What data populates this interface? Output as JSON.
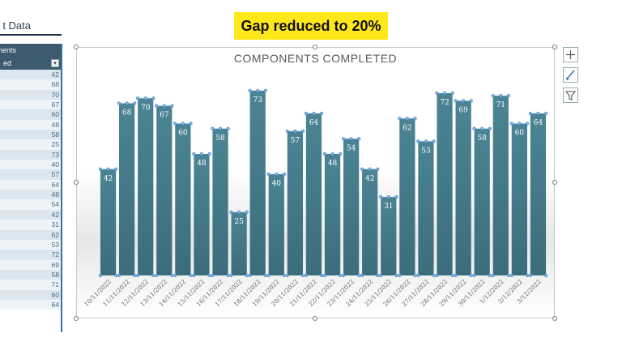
{
  "badge": {
    "text": "Gap reduced to 20%"
  },
  "sheet": {
    "title_fragment": "t Data",
    "header_line1": "nents",
    "header_line2": "ed",
    "values": [
      "42",
      "68",
      "70",
      "67",
      "60",
      "48",
      "58",
      "25",
      "73",
      "40",
      "57",
      "64",
      "48",
      "54",
      "42",
      "31",
      "62",
      "53",
      "72",
      "69",
      "58",
      "71",
      "60",
      "64"
    ]
  },
  "chart_data": {
    "type": "bar",
    "title": "COMPONENTS COMPLETED",
    "categories": [
      "10/11/2022",
      "11/11/2022",
      "12/11/2022",
      "13/11/2022",
      "14/11/2022",
      "15/11/2022",
      "16/11/2022",
      "17/11/2022",
      "18/11/2022",
      "19/11/2022",
      "20/11/2022",
      "21/11/2022",
      "22/11/2022",
      "23/11/2022",
      "24/11/2022",
      "25/11/2022",
      "26/11/2022",
      "27/11/2022",
      "28/11/2022",
      "29/11/2022",
      "30/11/2022",
      "1/12/2022",
      "2/12/2022",
      "3/12/2022"
    ],
    "values": [
      42,
      68,
      70,
      67,
      60,
      48,
      58,
      25,
      73,
      40,
      57,
      64,
      48,
      54,
      42,
      31,
      62,
      53,
      72,
      69,
      58,
      71,
      60,
      64
    ],
    "ylim": [
      0,
      80
    ],
    "gap_width_percent": 20,
    "bar_color": "#4b8494",
    "grid": false,
    "legend": "none"
  },
  "side_buttons": {
    "add": "plus-icon",
    "style": "brush-icon",
    "filter": "funnel-icon"
  }
}
